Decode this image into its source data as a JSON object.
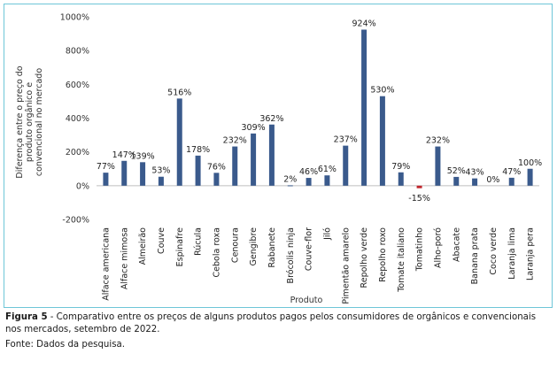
{
  "chart_data": {
    "type": "bar",
    "ylabel": "Diferença entre o preço do produto orgânico e convencional no mercado",
    "xlabel": "Produto",
    "ylim": [
      -200,
      1000
    ],
    "yticks": [
      "1000%",
      "800%",
      "600%",
      "400%",
      "200%",
      "0%",
      "-200%"
    ],
    "ytick_values": [
      1000,
      800,
      600,
      400,
      200,
      0,
      -200
    ],
    "grid": false,
    "bar_color": "#3a5a8c",
    "negative_color": "#c0262d",
    "categories": [
      "Alface americana",
      "Alface mimosa",
      "Almeirão",
      "Couve",
      "Espinafre",
      "Rúcula",
      "Cebola roxa",
      "Cenoura",
      "Gengibre",
      "Rabanete",
      "Brócolis ninja",
      "Couve-flor",
      "Jiló",
      "Pimentão amarelo",
      "Repolho verde",
      "Repolho roxo",
      "Tomate italiano",
      "Tomatinho",
      "Alho-poró",
      "Abacate",
      "Banana prata",
      "Coco verde",
      "Laranja lima",
      "Laranja pera"
    ],
    "values": [
      77,
      147,
      139,
      53,
      516,
      178,
      76,
      232,
      309,
      362,
      2,
      46,
      61,
      237,
      924,
      530,
      79,
      -15,
      232,
      52,
      43,
      0,
      47,
      100
    ],
    "data_labels": [
      "77%",
      "147%",
      "139%",
      "53%",
      "516%",
      "178%",
      "76%",
      "232%",
      "309%",
      "362%",
      "2%",
      "46%",
      "61%",
      "237%",
      "924%",
      "530%",
      "79%",
      "-15%",
      "232%",
      "52%",
      "43%",
      "0%",
      "47%",
      "100%"
    ]
  },
  "caption": {
    "label": "Figura 5",
    "text": " - Comparativo entre os preços de alguns produtos pagos pelos consumidores de orgânicos e convencionais nos mercados, setembro de 2022."
  },
  "source": "Fonte: Dados da pesquisa."
}
